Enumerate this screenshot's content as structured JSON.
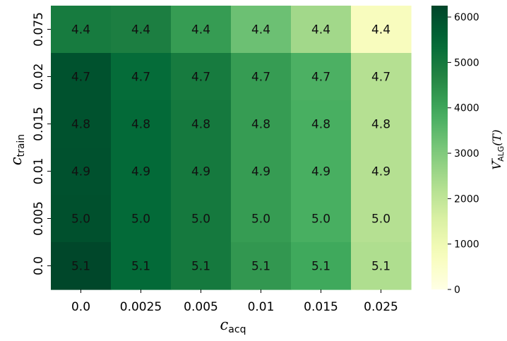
{
  "chart_data": {
    "type": "heatmap",
    "title": "",
    "xlabel": "c",
    "xlabel_sub": "acq",
    "ylabel": "c",
    "ylabel_sub": "train",
    "x_categories": [
      "0.0",
      "0.0025",
      "0.005",
      "0.01",
      "0.015",
      "0.025"
    ],
    "y_categories": [
      "0.075",
      "0.02",
      "0.015",
      "0.01",
      "0.005",
      "0.0"
    ],
    "color_values": [
      [
        4950,
        4850,
        4200,
        3300,
        2500,
        700
      ],
      [
        5950,
        5350,
        4950,
        4200,
        3750,
        2200
      ],
      [
        5950,
        5400,
        5000,
        4200,
        3800,
        2200
      ],
      [
        5980,
        5400,
        5000,
        4200,
        3800,
        2200
      ],
      [
        6000,
        5400,
        5000,
        4200,
        3800,
        2200
      ],
      [
        6200,
        5400,
        5000,
        4300,
        3950,
        2300
      ]
    ],
    "annotations": [
      [
        "4.4",
        "4.4",
        "4.4",
        "4.4",
        "4.4",
        "4.4"
      ],
      [
        "4.7",
        "4.7",
        "4.7",
        "4.7",
        "4.7",
        "4.7"
      ],
      [
        "4.8",
        "4.8",
        "4.8",
        "4.8",
        "4.8",
        "4.8"
      ],
      [
        "4.9",
        "4.9",
        "4.9",
        "4.9",
        "4.9",
        "4.9"
      ],
      [
        "5.0",
        "5.0",
        "5.0",
        "5.0",
        "5.0",
        "5.0"
      ],
      [
        "5.1",
        "5.1",
        "5.1",
        "5.1",
        "5.1",
        "5.1"
      ]
    ],
    "colorbar": {
      "label_symbol": "V",
      "label_sub": "ALG",
      "label_arg": "(T)",
      "range": [
        0,
        6250
      ],
      "ticks": [
        0,
        1000,
        2000,
        3000,
        4000,
        5000,
        6000
      ],
      "colormap": "YlGn"
    }
  }
}
